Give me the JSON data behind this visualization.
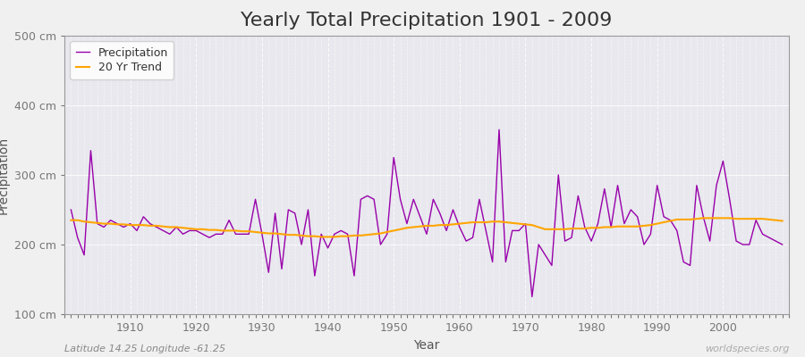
{
  "title": "Yearly Total Precipitation 1901 - 2009",
  "xlabel": "Year",
  "ylabel": "Precipitation",
  "subtitle": "Latitude 14.25 Longitude -61.25",
  "watermark": "worldspecies.org",
  "years": [
    1901,
    1902,
    1903,
    1904,
    1905,
    1906,
    1907,
    1908,
    1909,
    1910,
    1911,
    1912,
    1913,
    1914,
    1915,
    1916,
    1917,
    1918,
    1919,
    1920,
    1921,
    1922,
    1923,
    1924,
    1925,
    1926,
    1927,
    1928,
    1929,
    1930,
    1931,
    1932,
    1933,
    1934,
    1935,
    1936,
    1937,
    1938,
    1939,
    1940,
    1941,
    1942,
    1943,
    1944,
    1945,
    1946,
    1947,
    1948,
    1949,
    1950,
    1951,
    1952,
    1953,
    1954,
    1955,
    1956,
    1957,
    1958,
    1959,
    1960,
    1961,
    1962,
    1963,
    1964,
    1965,
    1966,
    1967,
    1968,
    1969,
    1970,
    1971,
    1972,
    1973,
    1974,
    1975,
    1976,
    1977,
    1978,
    1979,
    1980,
    1981,
    1982,
    1983,
    1984,
    1985,
    1986,
    1987,
    1988,
    1989,
    1990,
    1991,
    1992,
    1993,
    1994,
    1995,
    1996,
    1997,
    1998,
    1999,
    2000,
    2001,
    2002,
    2003,
    2004,
    2005,
    2006,
    2007,
    2008,
    2009
  ],
  "precip": [
    250,
    210,
    185,
    335,
    230,
    225,
    235,
    230,
    225,
    230,
    220,
    240,
    230,
    225,
    220,
    215,
    225,
    215,
    220,
    220,
    215,
    210,
    215,
    215,
    235,
    215,
    215,
    215,
    265,
    215,
    160,
    245,
    165,
    250,
    245,
    200,
    250,
    155,
    215,
    195,
    215,
    220,
    215,
    155,
    265,
    270,
    265,
    200,
    215,
    325,
    265,
    230,
    265,
    240,
    215,
    265,
    245,
    220,
    250,
    225,
    205,
    210,
    265,
    220,
    175,
    365,
    175,
    220,
    220,
    230,
    125,
    200,
    185,
    170,
    300,
    205,
    210,
    270,
    225,
    205,
    230,
    280,
    225,
    285,
    230,
    250,
    240,
    200,
    215,
    285,
    240,
    235,
    220,
    175,
    170,
    285,
    240,
    205,
    285,
    320,
    265,
    205,
    200,
    200,
    235,
    215,
    210,
    205,
    200
  ],
  "trend": [
    235,
    235,
    233,
    232,
    231,
    230,
    230,
    229,
    229,
    228,
    228,
    228,
    227,
    227,
    226,
    225,
    225,
    224,
    223,
    222,
    222,
    221,
    221,
    220,
    220,
    220,
    219,
    219,
    218,
    217,
    216,
    216,
    215,
    214,
    214,
    213,
    212,
    212,
    211,
    211,
    211,
    212,
    212,
    213,
    213,
    214,
    215,
    216,
    218,
    220,
    222,
    224,
    225,
    226,
    227,
    227,
    228,
    228,
    229,
    230,
    231,
    232,
    232,
    232,
    233,
    233,
    232,
    231,
    230,
    229,
    228,
    225,
    222,
    222,
    222,
    222,
    223,
    223,
    223,
    224,
    224,
    225,
    225,
    226,
    226,
    226,
    226,
    227,
    228,
    230,
    232,
    234,
    236,
    236,
    236,
    237,
    238,
    238,
    238,
    238,
    238,
    237,
    237,
    237,
    237,
    237,
    236,
    235,
    234
  ],
  "precip_color": "#9900aa",
  "trend_color": "#ffa500",
  "fig_bg_color": "#f0f0f0",
  "plot_bg_color": "#e8e8ee",
  "grid_color": "#ffffff",
  "ylim": [
    100,
    500
  ],
  "yticks": [
    100,
    200,
    300,
    400,
    500
  ],
  "ytick_labels": [
    "100 cm",
    "200 cm",
    "300 cm",
    "400 cm",
    "500 cm"
  ],
  "xlim": [
    1900,
    2010
  ],
  "title_fontsize": 16,
  "axis_label_fontsize": 10,
  "tick_fontsize": 9,
  "legend_fontsize": 9
}
